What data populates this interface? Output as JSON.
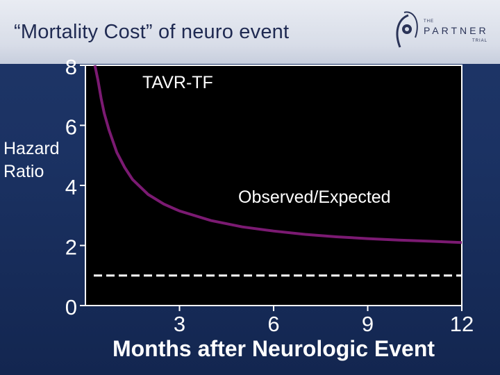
{
  "slide": {
    "title": "“Mortality Cost” of neuro event"
  },
  "logo": {
    "top": "THE",
    "main": "PARTNER",
    "bottom": "TRIAL"
  },
  "chart_data": {
    "type": "line",
    "xlabel": "Months after Neurologic Event",
    "ylabel_lines": [
      "Hazard",
      "Ratio"
    ],
    "xlim": [
      0,
      12
    ],
    "ylim": [
      0,
      8
    ],
    "x_ticks": [
      3,
      6,
      9,
      12
    ],
    "y_ticks": [
      0,
      2,
      4,
      6,
      8
    ],
    "annotations": [
      "TAVR-TF",
      "Observed/Expected"
    ],
    "series": [
      {
        "color": "#7b1a72",
        "x": [
          0.3,
          0.4,
          0.5,
          0.6,
          0.75,
          1.0,
          1.25,
          1.5,
          2.0,
          2.5,
          3.0,
          4.0,
          5.0,
          6.0,
          7.0,
          8.0,
          9.0,
          10.0,
          11.0,
          12.0
        ],
        "y": [
          8.0,
          7.5,
          6.9,
          6.4,
          5.85,
          5.1,
          4.6,
          4.2,
          3.7,
          3.38,
          3.15,
          2.83,
          2.62,
          2.48,
          2.37,
          2.29,
          2.23,
          2.18,
          2.14,
          2.1
        ]
      }
    ],
    "reference_line": {
      "y": 1,
      "style": "dashed",
      "color": "#ffffff"
    }
  }
}
